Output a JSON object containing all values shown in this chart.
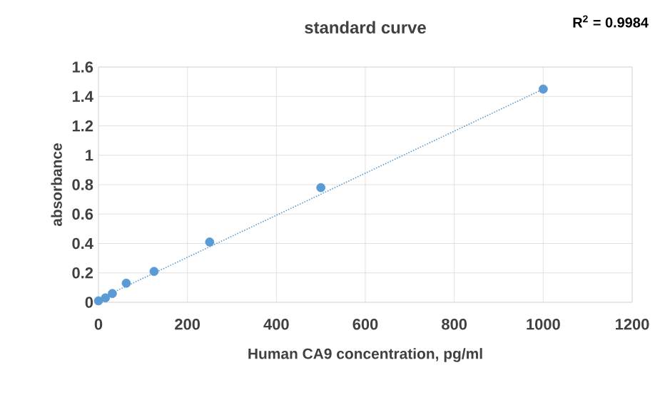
{
  "chart_data": {
    "type": "scatter",
    "title": "standard curve",
    "xlabel": "Human CA9 concentration, pg/ml",
    "ylabel": "absorbance",
    "annotations": [
      "R$^{2}$ = 0.9984"
    ],
    "series": [
      {
        "color": "#5b9bd5",
        "marker": "circle",
        "x": [
          0,
          15.6,
          31.25,
          62.5,
          125,
          250,
          500,
          1000
        ],
        "values": [
          0.01,
          0.03,
          0.06,
          0.13,
          0.21,
          0.41,
          0.78,
          1.45
        ]
      },
      {
        "type": "line",
        "color": "#5b9bd5",
        "line_style": "dotted",
        "marker": "none",
        "x": [
          0,
          1000
        ],
        "values": [
          0.02,
          1.45
        ]
      }
    ],
    "xlim": [
      0,
      1200
    ],
    "xticks": [
      0,
      200,
      400,
      600,
      800,
      1000,
      1200
    ],
    "ylim": [
      0,
      1.6
    ],
    "yticks": [
      0,
      0.2,
      0.4,
      0.6,
      0.8,
      1,
      1.2,
      1.4,
      1.6
    ],
    "grid": true
  }
}
